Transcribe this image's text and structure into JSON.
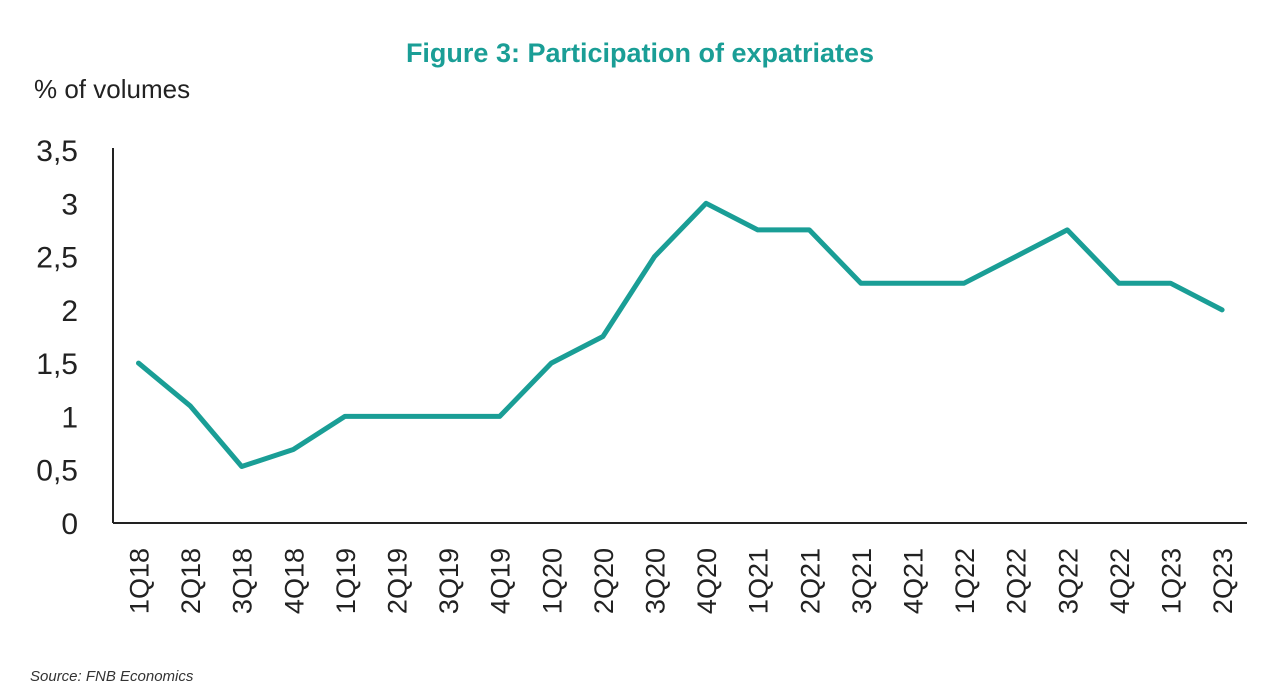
{
  "title": "Figure 3: Participation of expatriates",
  "ylabel": "% of volumes",
  "source": "Source: FNB Economics",
  "colors": {
    "accent": "#1a9e96",
    "axis": "#222222"
  },
  "chart_data": {
    "type": "line",
    "title": "Figure 3: Participation of expatriates",
    "xlabel": "",
    "ylabel": "% of volumes",
    "ylim": [
      0,
      3.5
    ],
    "yticks": [
      "0",
      "0,5",
      "1",
      "1,5",
      "2",
      "2,5",
      "3",
      "3,5"
    ],
    "ytick_values": [
      0,
      0.5,
      1,
      1.5,
      2,
      2.5,
      3,
      3.5
    ],
    "grid": false,
    "categories": [
      "1Q18",
      "2Q18",
      "3Q18",
      "4Q18",
      "1Q19",
      "2Q19",
      "3Q19",
      "4Q19",
      "1Q20",
      "2Q20",
      "3Q20",
      "4Q20",
      "1Q21",
      "2Q21",
      "3Q21",
      "4Q21",
      "1Q22",
      "2Q22",
      "3Q22",
      "4Q22",
      "1Q23",
      "2Q23"
    ],
    "series": [
      {
        "values": [
          1.5,
          1.1,
          0.53,
          0.69,
          1.0,
          1.0,
          1.0,
          1.0,
          1.5,
          1.75,
          2.5,
          3.0,
          2.75,
          2.75,
          2.25,
          2.25,
          2.25,
          2.5,
          2.75,
          2.25,
          2.25,
          2.0
        ]
      }
    ]
  }
}
